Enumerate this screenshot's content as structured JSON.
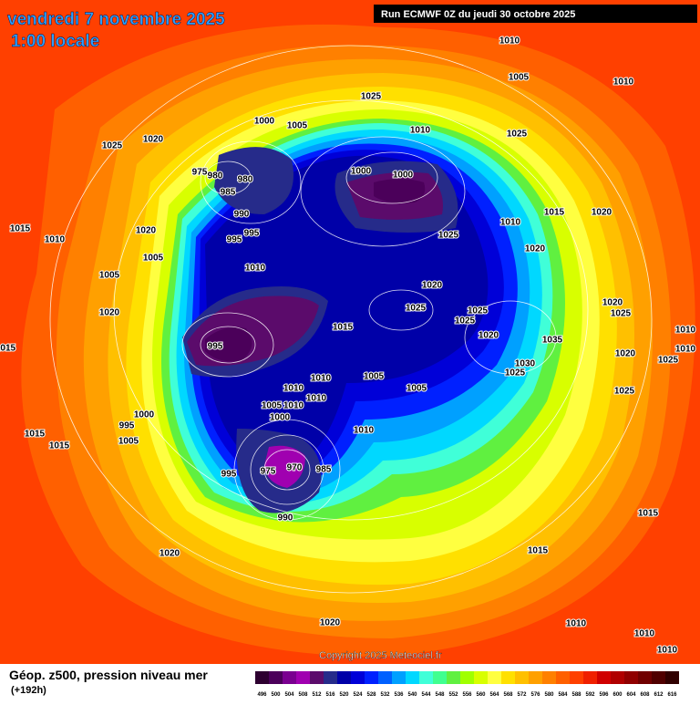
{
  "header": {
    "date": "vendredi 7 novembre 2025",
    "time": "1:00 locale",
    "run": "Run ECMWF 0Z du jeudi 30 octobre 2025"
  },
  "map": {
    "pressure_labels": [
      1010,
      1005,
      1010,
      1025,
      1025,
      1020,
      1000,
      1005,
      1010,
      1025,
      975,
      980,
      980,
      1000,
      1000,
      985,
      990,
      995,
      995,
      1010,
      1015,
      1020,
      1010,
      1015,
      1020,
      1025,
      1020,
      1005,
      1010,
      1005,
      1020,
      1025,
      1025,
      1025,
      1020,
      1020,
      1025,
      1015,
      1020,
      1035,
      995,
      1010,
      1010,
      1020,
      1025,
      1030,
      1025,
      1010,
      1005,
      1005,
      1010,
      1010,
      1025,
      1005,
      1010,
      1000,
      1000,
      995,
      1010,
      1015,
      1015,
      1005,
      995,
      975,
      970,
      985,
      990,
      1015,
      1020,
      1015,
      1020,
      1010,
      1010,
      1010,
      1015
    ]
  },
  "footer": {
    "copyright": "Copyright 2025 Meteociel.fr",
    "title": "Géop. z500, pression niveau mer",
    "lead": "(+192h)"
  },
  "legend": {
    "values": [
      496,
      500,
      504,
      508,
      512,
      516,
      520,
      524,
      528,
      532,
      536,
      540,
      544,
      548,
      552,
      556,
      560,
      564,
      568,
      572,
      576,
      580,
      584,
      588,
      592,
      596,
      600,
      604,
      608,
      612,
      616
    ],
    "colors": [
      "#2d0030",
      "#4b005a",
      "#7a0090",
      "#a000b0",
      "#5b0b6b",
      "#262b8a",
      "#0000a8",
      "#0000d8",
      "#0020ff",
      "#0060ff",
      "#00a0ff",
      "#00d8ff",
      "#40ffd8",
      "#40ff90",
      "#60f040",
      "#a0ff00",
      "#d8ff00",
      "#ffff40",
      "#ffe000",
      "#ffc000",
      "#ffa000",
      "#ff8000",
      "#ff6000",
      "#ff4000",
      "#f02000",
      "#d00000",
      "#b00000",
      "#900000",
      "#700000",
      "#500000",
      "#300000"
    ]
  }
}
